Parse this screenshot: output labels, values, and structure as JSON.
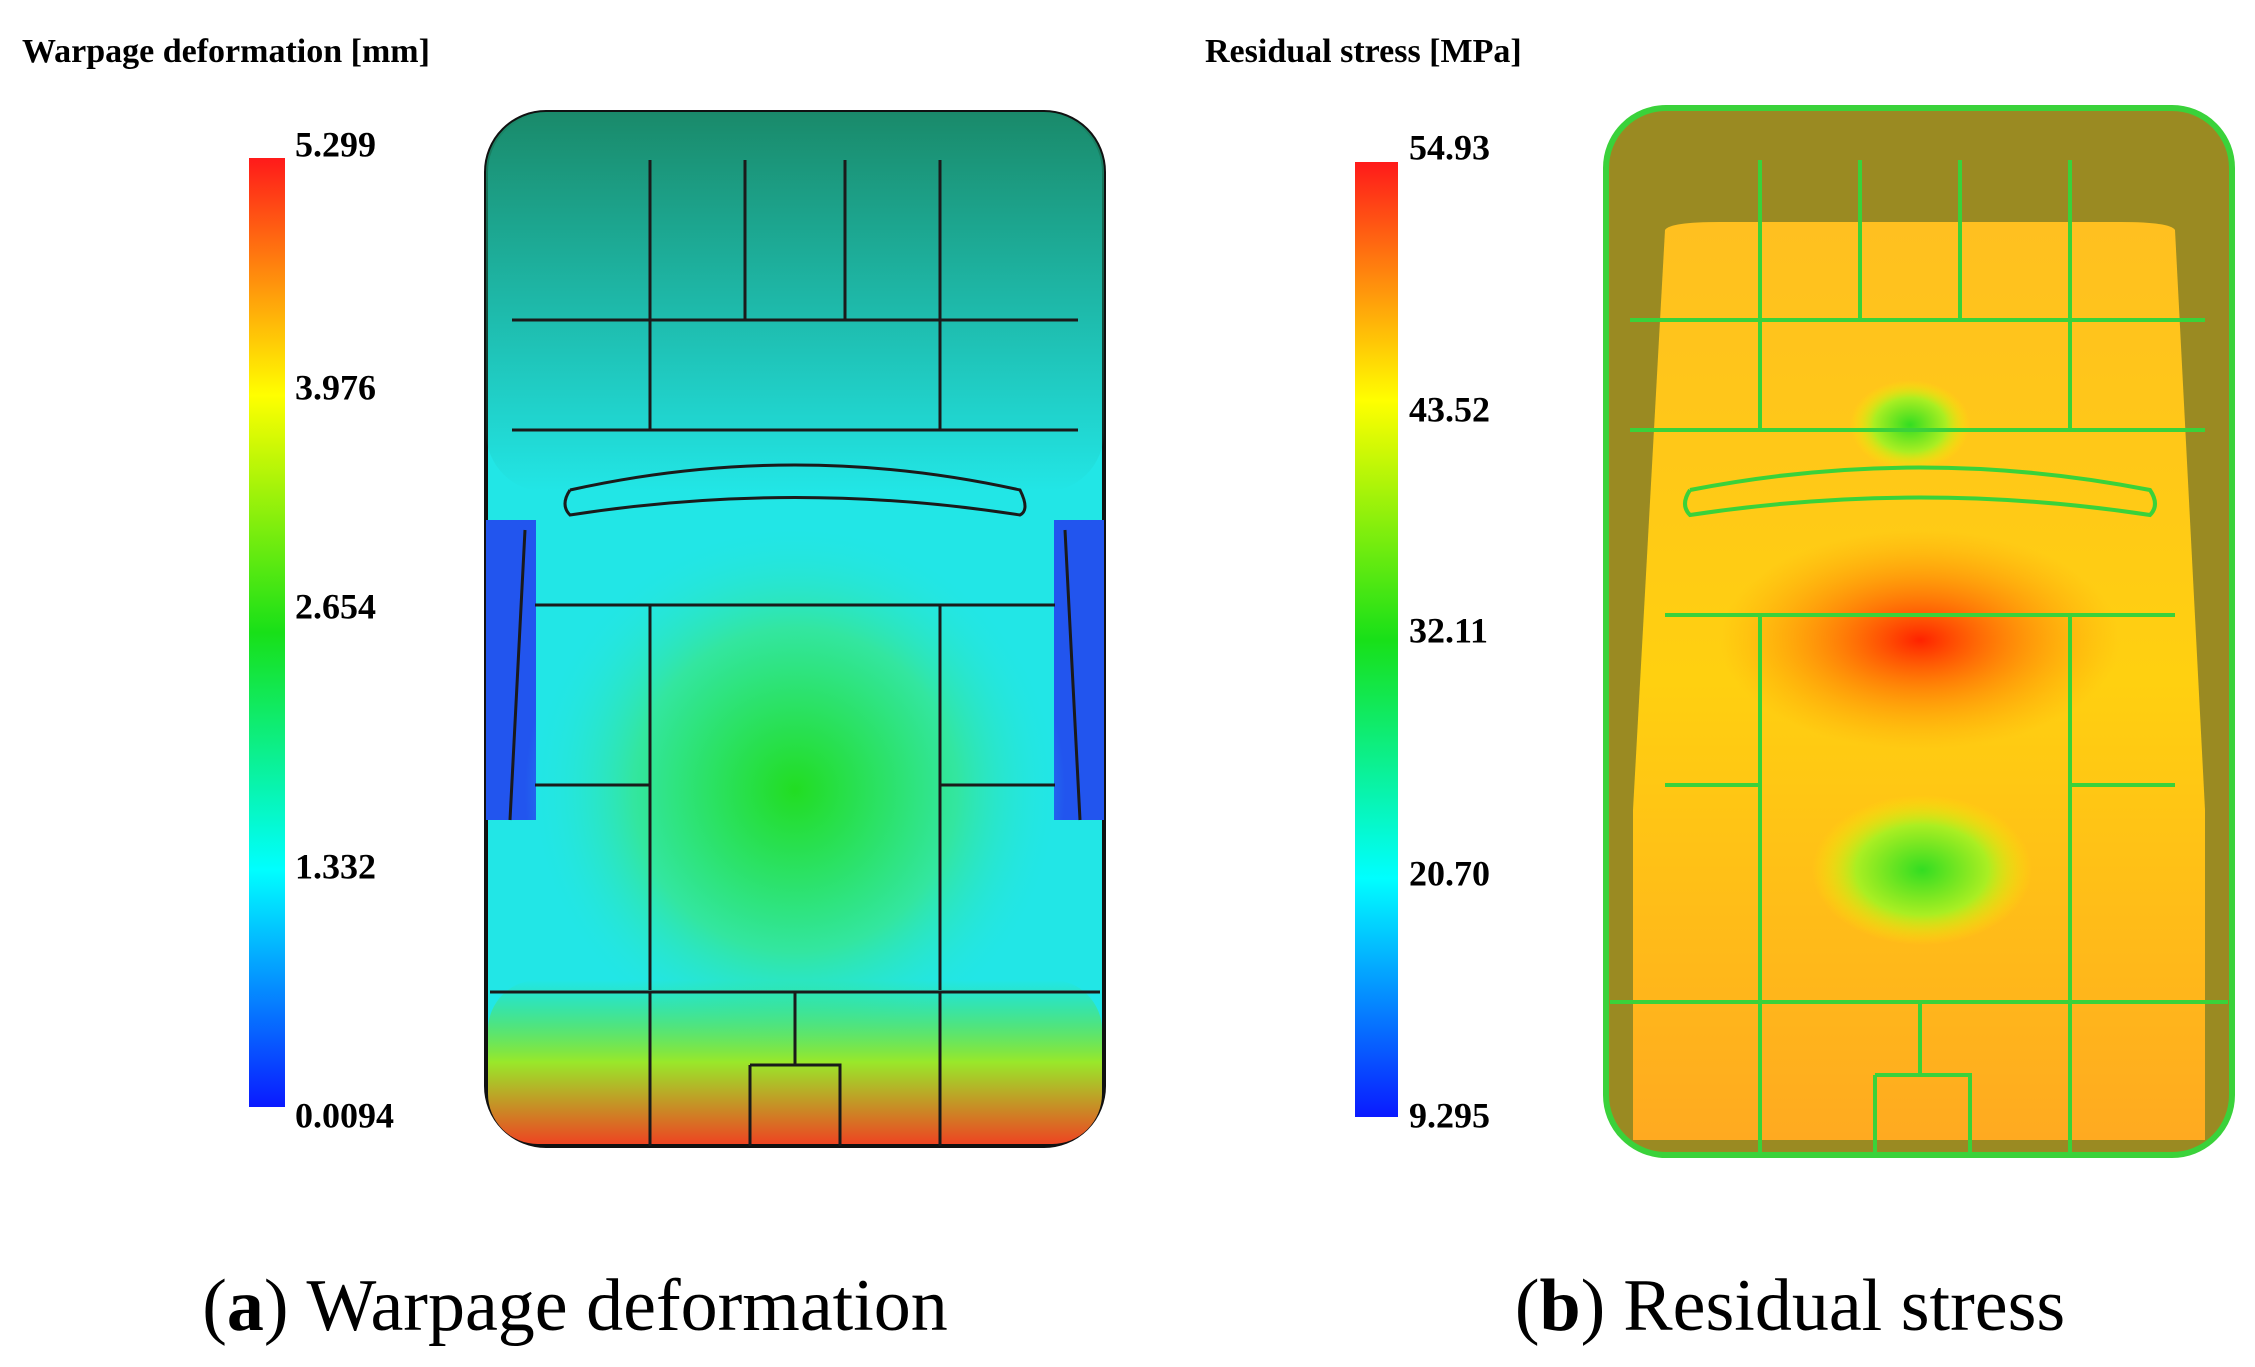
{
  "panels": [
    {
      "title": "Warpage deformation [mm]",
      "scale_labels": [
        "5.299",
        "3.976",
        "2.654",
        "1.332",
        "0.0094"
      ],
      "caption": {
        "open": "(",
        "label": "a",
        "close": ")",
        "text": "Warpage deformation"
      }
    },
    {
      "title": "Residual stress [MPa]",
      "scale_labels": [
        "54.93",
        "43.52",
        "32.11",
        "20.70",
        "9.295"
      ],
      "caption": {
        "open": "(",
        "label": "b",
        "close": ")",
        "text": "Residual stress"
      }
    }
  ]
}
